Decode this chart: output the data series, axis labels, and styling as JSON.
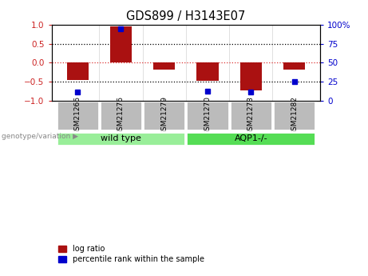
{
  "title": "GDS899 / H3143E07",
  "samples": [
    "GSM21266",
    "GSM21276",
    "GSM21279",
    "GSM21270",
    "GSM21273",
    "GSM21282"
  ],
  "log_ratios": [
    -0.45,
    0.95,
    -0.18,
    -0.48,
    -0.72,
    -0.18
  ],
  "percentile_ranks": [
    12,
    95,
    0,
    13,
    11,
    25
  ],
  "show_blue_squares": [
    true,
    true,
    false,
    true,
    true,
    true
  ],
  "n_wild_type": 3,
  "bar_color": "#AA1111",
  "dot_color": "#0000CC",
  "wt_box_color": "#99EE99",
  "aqp1_box_color": "#55DD55",
  "sample_box_color": "#BBBBBB",
  "left_axis_color": "#CC2222",
  "right_axis_color": "#0000CC",
  "ylim_left": [
    -1,
    1
  ],
  "yticks_left": [
    -1,
    -0.5,
    0,
    0.5,
    1
  ],
  "yticks_right": [
    0,
    25,
    50,
    75,
    100
  ],
  "bar_width": 0.5,
  "legend_labels": [
    "log ratio",
    "percentile rank within the sample"
  ],
  "group_labels": [
    "wild type",
    "AQP1-/-"
  ],
  "genotype_label": "genotype/variation ▶"
}
